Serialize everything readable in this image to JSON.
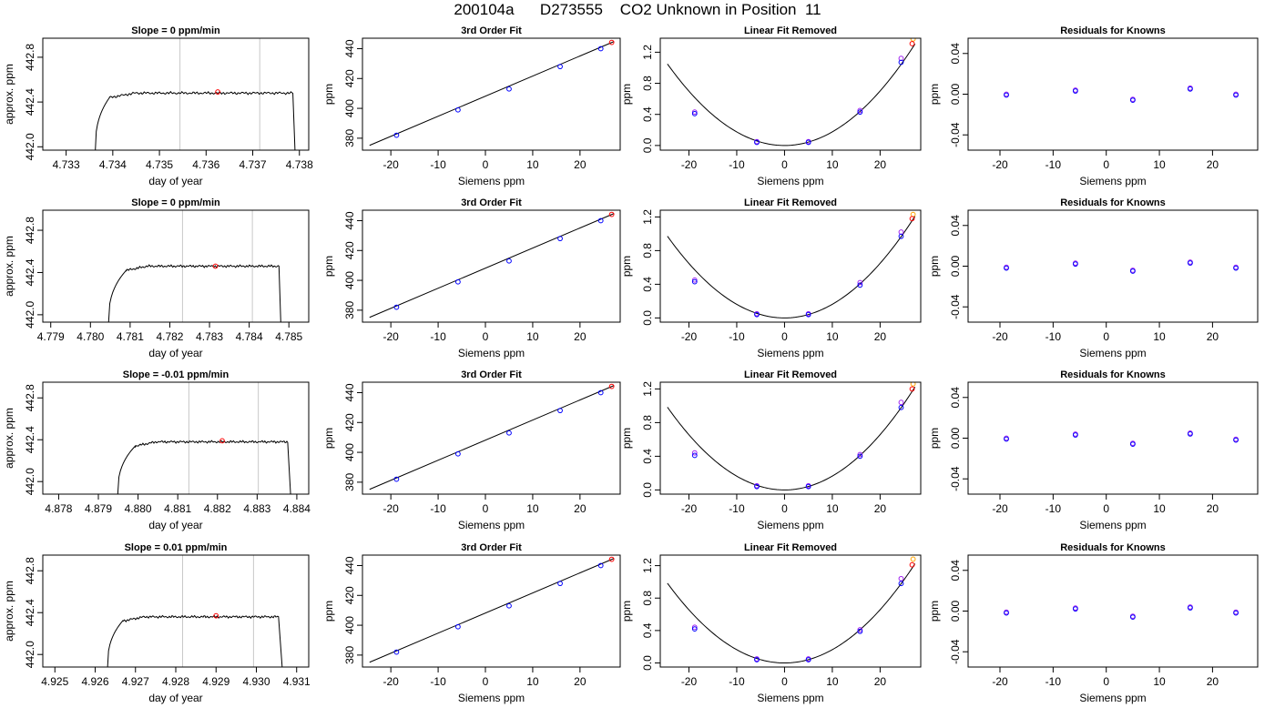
{
  "page_title": "200104a      D273555    CO2 Unknown in Position  11",
  "colors": {
    "line": "#000000",
    "gridline": "#c8c8c8",
    "known_blue": "#0000ff",
    "known_purple": "#a020f0",
    "unknown_red": "#ff0000",
    "unknown_orange": "#ffa500"
  },
  "chart_data": [
    {
      "type": "line",
      "row": 1,
      "title": "Slope =  0  ppm/min",
      "xlabel": "day of year",
      "ylabel": "approx. ppm",
      "xlim": [
        4.7325,
        4.7382
      ],
      "ylim": [
        441.97,
        442.97
      ],
      "xticks": [
        "4.733",
        "4.734",
        "4.735",
        "4.736",
        "4.737",
        "4.738"
      ],
      "yticks": [
        "442.0",
        "442.4",
        "442.8"
      ],
      "rise_start": 4.73362,
      "plateau_start": 4.73393,
      "plateau_end": 4.73786,
      "drop_end": 4.73791,
      "plateau_level": 442.48,
      "plateau_noise": 0.012,
      "vlines": [
        4.73544,
        4.73715
      ],
      "marker": {
        "x": 4.73625,
        "y": 442.49
      }
    },
    {
      "type": "scatter",
      "row": 1,
      "title": "3rd Order Fit",
      "xlabel": "Siemens ppm",
      "ylabel": "ppm",
      "xlim": [
        -26,
        28.5
      ],
      "ylim": [
        372,
        447
      ],
      "xticks": [
        "-20",
        "-10",
        "0",
        "10",
        "20"
      ],
      "yticks": [
        "380",
        "400",
        "420",
        "440"
      ],
      "fit_line": [
        [
          -24.5,
          375.2
        ],
        [
          27.2,
          444.8
        ]
      ],
      "knowns": [
        [
          -18.8,
          382
        ],
        [
          -5.8,
          399
        ],
        [
          5,
          413
        ],
        [
          15.8,
          428
        ],
        [
          24.4,
          440
        ]
      ],
      "unknown": [
        26.7,
        444.2
      ]
    },
    {
      "type": "scatter",
      "row": 1,
      "title": "Linear Fit Removed",
      "xlabel": "Siemens ppm",
      "ylabel": "ppm",
      "xlim": [
        -26,
        28.5
      ],
      "ylim": [
        -0.06,
        1.38
      ],
      "xticks": [
        "-20",
        "-10",
        "0",
        "10",
        "20"
      ],
      "yticks": [
        "0.0",
        "0.4",
        "0.8",
        "1.2"
      ],
      "curve": {
        "x_range": [
          -24.5,
          27.3
        ],
        "a": 0.00175,
        "b": 6e-05,
        "c": 0.0
      },
      "knowns": [
        [
          -18.8,
          0.41
        ],
        [
          -5.8,
          0.04
        ],
        [
          5,
          0.04
        ],
        [
          15.8,
          0.43
        ],
        [
          24.4,
          1.07
        ]
      ],
      "knowns_alt": [
        [
          -18.8,
          0.43
        ],
        [
          -5.8,
          0.05
        ],
        [
          5,
          0.05
        ],
        [
          15.8,
          0.45
        ],
        [
          24.4,
          1.12
        ]
      ],
      "unknown": [
        26.7,
        1.31
      ],
      "unknown_alt": [
        26.9,
        1.37
      ]
    },
    {
      "type": "scatter",
      "row": 1,
      "title": "Residuals for Knowns",
      "xlabel": "Siemens ppm",
      "ylabel": "ppm",
      "xlim": [
        -26,
        28.5
      ],
      "ylim": [
        -0.055,
        0.055
      ],
      "xticks": [
        "-20",
        "-10",
        "0",
        "10",
        "20"
      ],
      "yticks": [
        "-0.04",
        "0.00",
        "0.04"
      ],
      "knowns": [
        [
          -18.8,
          0.0
        ],
        [
          -5.8,
          0.004
        ],
        [
          5,
          -0.005
        ],
        [
          15.8,
          0.006
        ],
        [
          24.4,
          0.0
        ]
      ]
    },
    {
      "type": "line",
      "row": 2,
      "title": "Slope =  0  ppm/min",
      "xlabel": "day of year",
      "ylabel": "approx. ppm",
      "xlim": [
        4.7788,
        4.7855
      ],
      "ylim": [
        441.93,
        442.99
      ],
      "xticks": [
        "4.779",
        "4.780",
        "4.781",
        "4.782",
        "4.783",
        "4.784",
        "4.785"
      ],
      "yticks": [
        "442.0",
        "442.4",
        "442.8"
      ],
      "rise_start": 4.78045,
      "plateau_start": 4.7809,
      "plateau_end": 4.78475,
      "drop_end": 4.7848,
      "plateau_level": 442.46,
      "plateau_noise": 0.012,
      "vlines": [
        4.78232,
        4.78408
      ],
      "marker": {
        "x": 4.78315,
        "y": 442.46
      }
    },
    {
      "type": "scatter",
      "row": 2,
      "title": "3rd Order Fit",
      "xlabel": "Siemens ppm",
      "ylabel": "ppm",
      "xlim": [
        -26,
        28.5
      ],
      "ylim": [
        372,
        447
      ],
      "xticks": [
        "-20",
        "-10",
        "0",
        "10",
        "20"
      ],
      "yticks": [
        "380",
        "400",
        "420",
        "440"
      ],
      "fit_line": [
        [
          -24.5,
          375.2
        ],
        [
          27.2,
          444.8
        ]
      ],
      "knowns": [
        [
          -18.8,
          382
        ],
        [
          -5.8,
          399
        ],
        [
          5,
          413
        ],
        [
          15.8,
          428
        ],
        [
          24.4,
          440
        ]
      ],
      "unknown": [
        26.7,
        444.2
      ]
    },
    {
      "type": "scatter",
      "row": 2,
      "title": "Linear Fit Removed",
      "xlabel": "Siemens ppm",
      "ylabel": "ppm",
      "xlim": [
        -26,
        28.5
      ],
      "ylim": [
        -0.05,
        1.28
      ],
      "xticks": [
        "-20",
        "-10",
        "0",
        "10",
        "20"
      ],
      "yticks": [
        "0.0",
        "0.4",
        "0.8",
        "1.2"
      ],
      "curve": {
        "x_range": [
          -24.5,
          27.3
        ],
        "a": 0.00162,
        "b": 4e-05,
        "c": 0.0
      },
      "knowns": [
        [
          -18.8,
          0.43
        ],
        [
          -5.8,
          0.04
        ],
        [
          5,
          0.04
        ],
        [
          15.8,
          0.39
        ],
        [
          24.4,
          0.97
        ]
      ],
      "knowns_alt": [
        [
          -18.8,
          0.45
        ],
        [
          -5.8,
          0.05
        ],
        [
          5,
          0.05
        ],
        [
          15.8,
          0.42
        ],
        [
          24.4,
          1.02
        ]
      ],
      "unknown": [
        26.7,
        1.18
      ],
      "unknown_alt": [
        26.9,
        1.23
      ]
    },
    {
      "type": "scatter",
      "row": 2,
      "title": "Residuals for Knowns",
      "xlabel": "Siemens ppm",
      "ylabel": "ppm",
      "xlim": [
        -26,
        28.5
      ],
      "ylim": [
        -0.055,
        0.055
      ],
      "xticks": [
        "-20",
        "-10",
        "0",
        "10",
        "20"
      ],
      "yticks": [
        "-0.04",
        "0.00",
        "0.04"
      ],
      "knowns": [
        [
          -18.8,
          -0.001
        ],
        [
          -5.8,
          0.003
        ],
        [
          5,
          -0.004
        ],
        [
          15.8,
          0.004
        ],
        [
          24.4,
          -0.001
        ]
      ]
    },
    {
      "type": "line",
      "row": 3,
      "title": "Slope =  -0.01  ppm/min",
      "xlabel": "day of year",
      "ylabel": "approx. ppm",
      "xlim": [
        4.8776,
        4.8843
      ],
      "ylim": [
        441.88,
        442.95
      ],
      "xticks": [
        "4.878",
        "4.879",
        "4.880",
        "4.881",
        "4.882",
        "4.883",
        "4.884"
      ],
      "yticks": [
        "442.0",
        "442.4",
        "442.8"
      ],
      "rise_start": 4.87948,
      "plateau_start": 4.87993,
      "plateau_end": 4.88377,
      "drop_end": 4.88385,
      "plateau_level": 442.38,
      "plateau_noise": 0.012,
      "vlines": [
        4.88128,
        4.88303
      ],
      "marker": {
        "x": 4.88212,
        "y": 442.39
      }
    },
    {
      "type": "scatter",
      "row": 3,
      "title": "3rd Order Fit",
      "xlabel": "Siemens ppm",
      "ylabel": "ppm",
      "xlim": [
        -26,
        28.5
      ],
      "ylim": [
        372,
        447
      ],
      "xticks": [
        "-20",
        "-10",
        "0",
        "10",
        "20"
      ],
      "yticks": [
        "380",
        "400",
        "420",
        "440"
      ],
      "fit_line": [
        [
          -24.5,
          375.2
        ],
        [
          27.2,
          444.8
        ]
      ],
      "knowns": [
        [
          -18.8,
          382
        ],
        [
          -5.8,
          399
        ],
        [
          5,
          413
        ],
        [
          15.8,
          428
        ],
        [
          24.4,
          440
        ]
      ],
      "unknown": [
        26.7,
        444.2
      ]
    },
    {
      "type": "scatter",
      "row": 3,
      "title": "Linear Fit Removed",
      "xlabel": "Siemens ppm",
      "ylabel": "ppm",
      "xlim": [
        -26,
        28.5
      ],
      "ylim": [
        -0.05,
        1.28
      ],
      "xticks": [
        "-20",
        "-10",
        "0",
        "10",
        "20"
      ],
      "yticks": [
        "0.0",
        "0.4",
        "0.8",
        "1.2"
      ],
      "curve": {
        "x_range": [
          -24.5,
          27.3
        ],
        "a": 0.00164,
        "b": 4e-05,
        "c": 0.0
      },
      "knowns": [
        [
          -18.8,
          0.41
        ],
        [
          -5.8,
          0.04
        ],
        [
          5,
          0.04
        ],
        [
          15.8,
          0.4
        ],
        [
          24.4,
          0.98
        ]
      ],
      "knowns_alt": [
        [
          -18.8,
          0.44
        ],
        [
          -5.8,
          0.05
        ],
        [
          5,
          0.05
        ],
        [
          15.8,
          0.42
        ],
        [
          24.4,
          1.04
        ]
      ],
      "unknown": [
        26.7,
        1.2
      ],
      "unknown_alt": [
        26.9,
        1.26
      ]
    },
    {
      "type": "scatter",
      "row": 3,
      "title": "Residuals for Knowns",
      "xlabel": "Siemens ppm",
      "ylabel": "ppm",
      "xlim": [
        -26,
        28.5
      ],
      "ylim": [
        -0.055,
        0.055
      ],
      "xticks": [
        "-20",
        "-10",
        "0",
        "10",
        "20"
      ],
      "yticks": [
        "-0.04",
        "0.00",
        "0.04"
      ],
      "knowns": [
        [
          -18.8,
          0.0
        ],
        [
          -5.8,
          0.004
        ],
        [
          5,
          -0.005
        ],
        [
          15.8,
          0.005
        ],
        [
          24.4,
          -0.001
        ]
      ]
    },
    {
      "type": "line",
      "row": 4,
      "title": "Slope =  0.01  ppm/min",
      "xlabel": "day of year",
      "ylabel": "approx. ppm",
      "xlim": [
        4.9247,
        4.9313
      ],
      "ylim": [
        441.88,
        442.95
      ],
      "xticks": [
        "4.925",
        "4.926",
        "4.927",
        "4.928",
        "4.929",
        "4.930",
        "4.931"
      ],
      "yticks": [
        "442.0",
        "442.4",
        "442.8"
      ],
      "rise_start": 4.9263,
      "plateau_start": 4.92668,
      "plateau_end": 4.93055,
      "drop_end": 4.93065,
      "plateau_level": 442.36,
      "plateau_noise": 0.012,
      "vlines": [
        4.92817,
        4.92993
      ],
      "marker": {
        "x": 4.929,
        "y": 442.37
      }
    },
    {
      "type": "scatter",
      "row": 4,
      "title": "3rd Order Fit",
      "xlabel": "Siemens ppm",
      "ylabel": "ppm",
      "xlim": [
        -26,
        28.5
      ],
      "ylim": [
        372,
        447
      ],
      "xticks": [
        "-20",
        "-10",
        "0",
        "10",
        "20"
      ],
      "yticks": [
        "380",
        "400",
        "420",
        "440"
      ],
      "fit_line": [
        [
          -24.5,
          375.2
        ],
        [
          27.2,
          444.8
        ]
      ],
      "knowns": [
        [
          -18.8,
          382
        ],
        [
          -5.8,
          399
        ],
        [
          5,
          413
        ],
        [
          15.8,
          428
        ],
        [
          24.4,
          440
        ]
      ],
      "unknown": [
        26.7,
        444.2
      ]
    },
    {
      "type": "scatter",
      "row": 4,
      "title": "Linear Fit Removed",
      "xlabel": "Siemens ppm",
      "ylabel": "ppm",
      "xlim": [
        -26,
        28.5
      ],
      "ylim": [
        -0.05,
        1.33
      ],
      "xticks": [
        "-20",
        "-10",
        "0",
        "10",
        "20"
      ],
      "yticks": [
        "0.0",
        "0.4",
        "0.8",
        "1.2"
      ],
      "curve": {
        "x_range": [
          -24.5,
          27.3
        ],
        "a": 0.00164,
        "b": 4e-05,
        "c": 0.0
      },
      "knowns": [
        [
          -18.8,
          0.42
        ],
        [
          -5.8,
          0.04
        ],
        [
          5,
          0.04
        ],
        [
          15.8,
          0.39
        ],
        [
          24.4,
          0.98
        ]
      ],
      "knowns_alt": [
        [
          -18.8,
          0.44
        ],
        [
          -5.8,
          0.05
        ],
        [
          5,
          0.05
        ],
        [
          15.8,
          0.41
        ],
        [
          24.4,
          1.04
        ]
      ],
      "unknown": [
        26.7,
        1.21
      ],
      "unknown_alt": [
        26.9,
        1.28
      ]
    },
    {
      "type": "scatter",
      "row": 4,
      "title": "Residuals for Knowns",
      "xlabel": "Siemens ppm",
      "ylabel": "ppm",
      "xlim": [
        -26,
        28.5
      ],
      "ylim": [
        -0.055,
        0.055
      ],
      "xticks": [
        "-20",
        "-10",
        "0",
        "10",
        "20"
      ],
      "yticks": [
        "-0.04",
        "0.00",
        "0.04"
      ],
      "knowns": [
        [
          -18.8,
          -0.001
        ],
        [
          -5.8,
          0.003
        ],
        [
          5,
          -0.005
        ],
        [
          15.8,
          0.004
        ],
        [
          24.4,
          -0.001
        ]
      ]
    }
  ]
}
